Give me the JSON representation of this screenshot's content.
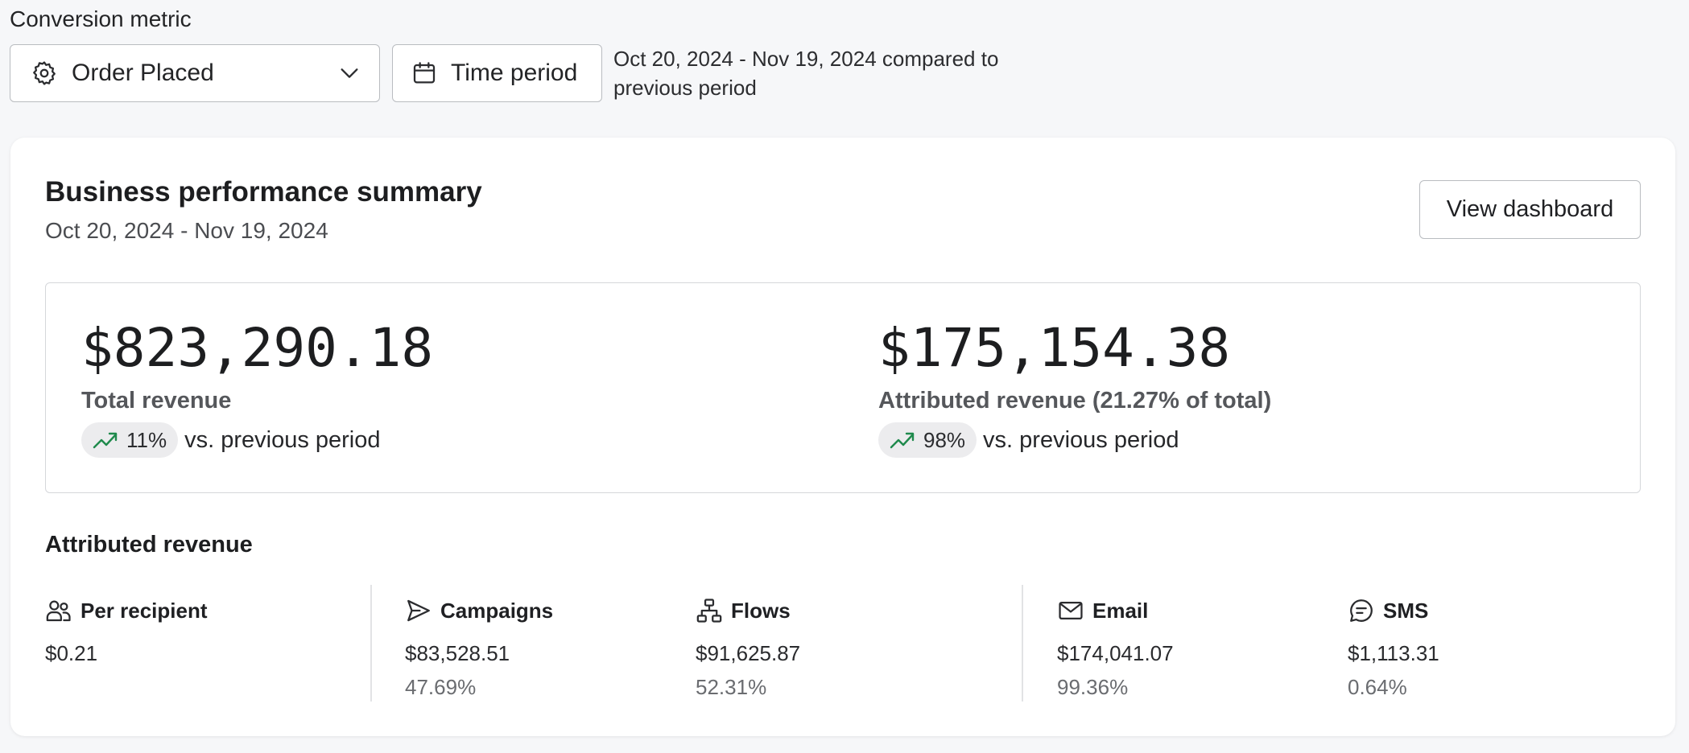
{
  "filters": {
    "metric_label": "Conversion metric",
    "metric_value": "Order Placed",
    "time_button": "Time period",
    "range_text": "Oct 20, 2024 - Nov 19, 2024 compared to previous period"
  },
  "summary": {
    "title": "Business performance summary",
    "date_range": "Oct 20, 2024 - Nov 19, 2024",
    "view_button": "View dashboard",
    "total": {
      "amount": "$823,290.18",
      "label": "Total revenue",
      "change": "11%",
      "change_suffix": "vs. previous period"
    },
    "attributed": {
      "amount": "$175,154.38",
      "label": "Attributed revenue (21.27% of total)",
      "change": "98%",
      "change_suffix": "vs. previous period"
    }
  },
  "attributed_revenue": {
    "title": "Attributed revenue",
    "stats": [
      {
        "name": "Per recipient",
        "amount": "$0.21",
        "share": "",
        "icon": "users-icon"
      },
      {
        "name": "Campaigns",
        "amount": "$83,528.51",
        "share": "47.69%",
        "icon": "send-icon"
      },
      {
        "name": "Flows",
        "amount": "$91,625.87",
        "share": "52.31%",
        "icon": "flows-icon"
      },
      {
        "name": "Email",
        "amount": "$174,041.07",
        "share": "99.36%",
        "icon": "mail-icon"
      },
      {
        "name": "SMS",
        "amount": "$1,113.31",
        "share": "0.64%",
        "icon": "sms-icon"
      }
    ]
  },
  "colors": {
    "trend_up": "#1f8a4c",
    "page_bg": "#f6f7f9",
    "card_bg": "#ffffff"
  }
}
